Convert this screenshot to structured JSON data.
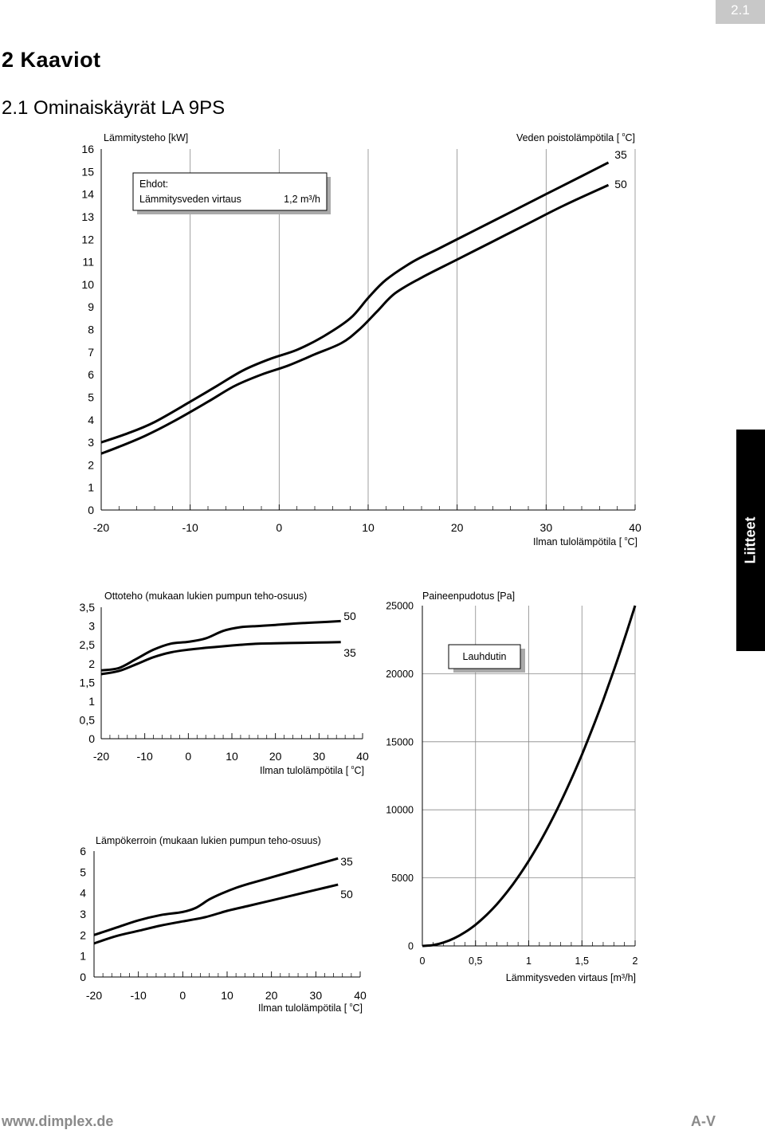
{
  "page": {
    "page_number": "2.1",
    "heading": "2 Kaaviot",
    "subheading": "2.1 Ominaiskäyrät LA 9PS",
    "side_tab": "Liitteet",
    "footer_left": "www.dimplex.de",
    "footer_right": "A-V"
  },
  "chart_data": [
    {
      "id": "heating",
      "type": "line",
      "title": "Lämmitysteho [kW]",
      "legend_title": "Veden poistolämpötila [ C]",
      "xlabel": "Ilman tulolämpötila [ C]",
      "ylabel": "Lämmitysteho [kW]",
      "xlim": [
        -20,
        40
      ],
      "ylim": [
        0,
        16
      ],
      "xticks": [
        "-20",
        "-10",
        "0",
        "10",
        "20",
        "30",
        "40"
      ],
      "yticks": [
        "0",
        "1",
        "2",
        "3",
        "4",
        "5",
        "6",
        "7",
        "8",
        "9",
        "10",
        "11",
        "12",
        "13",
        "14",
        "15",
        "16"
      ],
      "grid": true,
      "conditions": {
        "title": "Ehdot:",
        "label": "Lämmitysveden virtaus",
        "value": "1,2 m³/h"
      },
      "series": [
        {
          "name": "35",
          "x": [
            -20,
            -17,
            -14,
            -10,
            -7,
            -4,
            -1,
            2,
            5,
            8,
            10,
            12,
            15,
            18,
            22,
            26,
            30,
            34,
            37
          ],
          "y": [
            3.0,
            3.4,
            3.9,
            4.8,
            5.5,
            6.2,
            6.7,
            7.1,
            7.7,
            8.5,
            9.4,
            10.2,
            11.0,
            11.6,
            12.4,
            13.2,
            14.0,
            14.8,
            15.4
          ]
        },
        {
          "name": "50",
          "x": [
            -20,
            -18,
            -15,
            -12,
            -8,
            -5,
            -2,
            1,
            4,
            7,
            9,
            11,
            13,
            16,
            20,
            24,
            28,
            32,
            37
          ],
          "y": [
            2.5,
            2.8,
            3.3,
            3.9,
            4.8,
            5.5,
            6.0,
            6.4,
            6.9,
            7.4,
            8.0,
            8.8,
            9.6,
            10.3,
            11.1,
            11.9,
            12.7,
            13.5,
            14.4
          ]
        }
      ]
    },
    {
      "id": "cooling",
      "type": "line",
      "title": "Ottoteho (mukaan lukien  pumpun teho-osuus)",
      "xlabel": "Ilman tulolämpötila [ C]",
      "xlim": [
        -20,
        40
      ],
      "ylim": [
        0,
        3.5
      ],
      "xticks": [
        "-20",
        "-10",
        "0",
        "10",
        "20",
        "30",
        "40"
      ],
      "yticks": [
        "0",
        "0,5",
        "1",
        "1,5",
        "2",
        "2,5",
        "3",
        "3,5"
      ],
      "grid": false,
      "series": [
        {
          "name": "50",
          "x": [
            -20,
            -16,
            -12,
            -8,
            -4,
            0,
            4,
            8,
            12,
            16,
            20,
            25,
            30,
            35
          ],
          "y": [
            1.82,
            1.88,
            2.12,
            2.37,
            2.53,
            2.58,
            2.67,
            2.87,
            2.97,
            3.0,
            3.03,
            3.07,
            3.1,
            3.13
          ]
        },
        {
          "name": "35",
          "x": [
            -20,
            -16,
            -12,
            -8,
            -4,
            0,
            4,
            8,
            12,
            16,
            20,
            25,
            30,
            35
          ],
          "y": [
            1.72,
            1.8,
            1.98,
            2.17,
            2.3,
            2.37,
            2.42,
            2.46,
            2.5,
            2.53,
            2.54,
            2.55,
            2.56,
            2.57
          ]
        }
      ]
    },
    {
      "id": "cop",
      "type": "line",
      "title": "Lämpökerroin (mukaan lukien  pumpun teho-osuus)",
      "xlabel": "Ilman tulolämpötila [ C]",
      "xlim": [
        -20,
        40
      ],
      "ylim": [
        0,
        6
      ],
      "xticks": [
        "-20",
        "-10",
        "0",
        "10",
        "20",
        "30",
        "40"
      ],
      "yticks": [
        "0",
        "1",
        "2",
        "3",
        "4",
        "5",
        "6"
      ],
      "grid": false,
      "series": [
        {
          "name": "35",
          "x": [
            -20,
            -15,
            -10,
            -5,
            0,
            3,
            6,
            9,
            12,
            15,
            20,
            25,
            30,
            35
          ],
          "y": [
            2.0,
            2.35,
            2.7,
            2.95,
            3.1,
            3.3,
            3.7,
            4.0,
            4.25,
            4.45,
            4.75,
            5.05,
            5.35,
            5.65
          ]
        },
        {
          "name": "50",
          "x": [
            -20,
            -15,
            -10,
            -5,
            0,
            5,
            10,
            15,
            20,
            25,
            30,
            35
          ],
          "y": [
            1.6,
            1.95,
            2.2,
            2.45,
            2.65,
            2.85,
            3.15,
            3.4,
            3.65,
            3.9,
            4.15,
            4.4
          ]
        }
      ]
    },
    {
      "id": "pressure",
      "type": "line",
      "title": "Paineenpudotus [Pa]",
      "xlabel": "Lämmitysveden virtaus [m³/h]",
      "xlim": [
        0,
        2
      ],
      "ylim": [
        0,
        25000
      ],
      "xticks": [
        "0",
        "0,5",
        "1",
        "1,5",
        "2"
      ],
      "yticks": [
        "0",
        "5000",
        "10000",
        "15000",
        "20000",
        "25000"
      ],
      "grid": true,
      "box_label": "Lauhdutin",
      "series": [
        {
          "name": "Lauhdutin",
          "x": [
            0,
            0.1,
            0.2,
            0.3,
            0.4,
            0.5,
            0.6,
            0.7,
            0.8,
            0.9,
            1.0,
            1.1,
            1.2,
            1.3,
            1.4,
            1.5,
            1.6,
            1.7,
            1.8,
            1.9,
            2.0
          ],
          "y": [
            0,
            60,
            250,
            560,
            1000,
            1560,
            2250,
            3060,
            4000,
            5060,
            6250,
            7560,
            9000,
            10560,
            12250,
            14060,
            16000,
            18060,
            20250,
            22560,
            25000
          ]
        }
      ]
    }
  ]
}
